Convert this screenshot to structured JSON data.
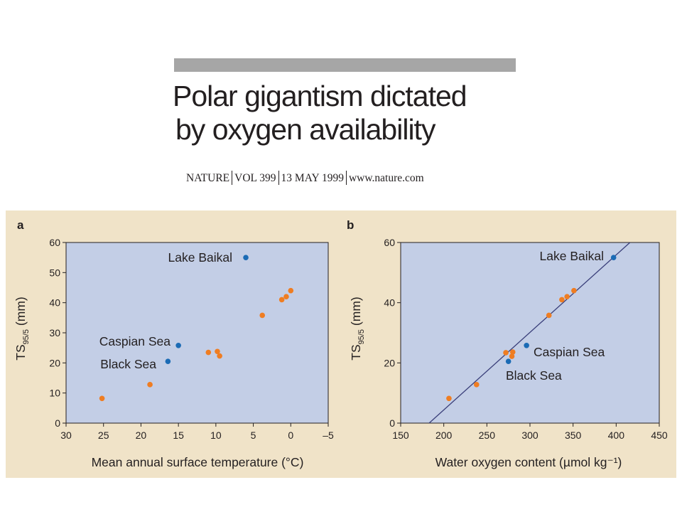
{
  "header": {
    "title_line1": "Polar gigantism dictated",
    "title_line2": "by oxygen availability",
    "citation": {
      "journal": "NATURE",
      "volume": "VOL 399",
      "date": "13 MAY 1999",
      "url": "www.nature.com"
    }
  },
  "colors": {
    "title_bar": "#a6a6a6",
    "figure_background": "#f0e3c8",
    "plot_background": "#c3cee6",
    "orange_points": "#ef7d22",
    "blue_points": "#1b6bb5",
    "fit_line": "#3a3f7a"
  },
  "chart_data": [
    {
      "panel_label": "a",
      "type": "scatter",
      "xlabel": "Mean annual surface temperature (°C)",
      "ylabel": "TS95/5 (mm)",
      "xlim": [
        30,
        -5
      ],
      "ylim": [
        0,
        60
      ],
      "xticks": [
        30,
        25,
        20,
        15,
        10,
        5,
        0,
        -5
      ],
      "xtick_labels": [
        "30",
        "25",
        "20",
        "15",
        "10",
        "5",
        "0",
        "–5"
      ],
      "yticks": [
        0,
        10,
        20,
        30,
        40,
        50,
        60
      ],
      "grid": false,
      "series": [
        {
          "color": "orange",
          "points": [
            {
              "x": 25.2,
              "y": 8.2
            },
            {
              "x": 18.8,
              "y": 12.8
            },
            {
              "x": 11.0,
              "y": 23.5
            },
            {
              "x": 9.8,
              "y": 23.8
            },
            {
              "x": 9.5,
              "y": 22.3
            },
            {
              "x": 3.8,
              "y": 35.8
            },
            {
              "x": 1.2,
              "y": 41.0
            },
            {
              "x": 0.6,
              "y": 42.0
            },
            {
              "x": 0.0,
              "y": 44.0
            }
          ]
        },
        {
          "color": "blue",
          "points": [
            {
              "x": 6.0,
              "y": 55.0,
              "label": "Lake Baikal"
            },
            {
              "x": 15.0,
              "y": 25.8,
              "label": "Caspian Sea"
            },
            {
              "x": 16.4,
              "y": 20.5,
              "label": "Black Sea"
            }
          ]
        }
      ]
    },
    {
      "panel_label": "b",
      "type": "scatter",
      "xlabel": "Water oxygen content (µmol kg⁻¹)",
      "ylabel": "TS95/5 (mm)",
      "xlim": [
        150,
        450
      ],
      "ylim": [
        0,
        60
      ],
      "xticks": [
        150,
        200,
        250,
        300,
        350,
        400,
        450
      ],
      "yticks": [
        0,
        20,
        40,
        60
      ],
      "grid": false,
      "series": [
        {
          "color": "orange",
          "points": [
            {
              "x": 206,
              "y": 8.2
            },
            {
              "x": 238,
              "y": 12.8
            },
            {
              "x": 272,
              "y": 23.4
            },
            {
              "x": 279,
              "y": 22.2
            },
            {
              "x": 280,
              "y": 23.6
            },
            {
              "x": 322,
              "y": 35.8
            },
            {
              "x": 337,
              "y": 41.0
            },
            {
              "x": 343,
              "y": 42.0
            },
            {
              "x": 351,
              "y": 44.0
            }
          ]
        },
        {
          "color": "blue",
          "points": [
            {
              "x": 397,
              "y": 55.0,
              "label": "Lake Baikal"
            },
            {
              "x": 296,
              "y": 25.8,
              "label": "Caspian Sea"
            },
            {
              "x": 275,
              "y": 20.5,
              "label": "Black Sea"
            }
          ]
        }
      ],
      "fit_line": {
        "x": [
          183,
          416
        ],
        "y": [
          0,
          60
        ]
      }
    }
  ]
}
